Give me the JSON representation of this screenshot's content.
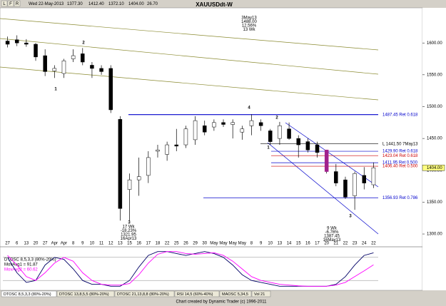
{
  "chart_data": {
    "type": "candlestick",
    "title": "XAUUSDdt-W",
    "header": {
      "buttons": [
        "L",
        "F",
        "R"
      ],
      "date": "Wed 22-May-2013",
      "open": "1377.30",
      "high": "1412.40",
      "low": "1372.10",
      "close": "1404.00",
      "change": "26.70"
    },
    "categories": [
      "27",
      "6",
      "13",
      "20",
      "27",
      "Apr",
      "Apr",
      "8",
      "9",
      "10",
      "11",
      "12",
      "13",
      "15",
      "16",
      "17",
      "18",
      "22",
      "25",
      "26",
      "29",
      "30",
      "May",
      "May",
      "May",
      "May",
      "8",
      "9",
      "10",
      "13",
      "14",
      "15",
      "16",
      "17",
      "20",
      "21",
      "22",
      "23",
      "24",
      "22"
    ],
    "open": [
      1603,
      1605,
      1600,
      1598,
      1580,
      1556,
      1552,
      1575,
      1583,
      1565,
      1560,
      1560,
      1480,
      1370,
      1385,
      1392,
      1430,
      1425,
      1440,
      1440,
      1448,
      1470,
      1468,
      1475,
      1472,
      1460,
      1470,
      1475,
      1462,
      1450,
      1465,
      1450,
      1445,
      1440,
      1432,
      1398,
      1385,
      1360,
      1392,
      1377.3
    ],
    "high": [
      1610,
      1612,
      1606,
      1600,
      1590,
      1565,
      1575,
      1590,
      1592,
      1570,
      1565,
      1565,
      1485,
      1395,
      1420,
      1430,
      1440,
      1445,
      1465,
      1470,
      1485,
      1478,
      1480,
      1480,
      1480,
      1470,
      1488,
      1480,
      1465,
      1476,
      1475,
      1455,
      1450,
      1445,
      1432,
      1410,
      1390,
      1398,
      1405,
      1412.4
    ],
    "low": [
      1593,
      1595,
      1594,
      1572,
      1548,
      1545,
      1545,
      1570,
      1565,
      1545,
      1550,
      1490,
      1321,
      1321,
      1360,
      1380,
      1420,
      1415,
      1430,
      1435,
      1440,
      1455,
      1462,
      1468,
      1450,
      1448,
      1455,
      1462,
      1440,
      1440,
      1448,
      1420,
      1428,
      1420,
      1395,
      1375,
      1355,
      1338,
      1370,
      1372.1
    ],
    "close": [
      1598,
      1600,
      1598,
      1578,
      1555,
      1560,
      1572,
      1580,
      1570,
      1560,
      1555,
      1495,
      1340,
      1385,
      1390,
      1420,
      1432,
      1440,
      1438,
      1465,
      1478,
      1460,
      1475,
      1472,
      1475,
      1465,
      1478,
      1470,
      1445,
      1470,
      1450,
      1440,
      1432,
      1428,
      1398,
      1380,
      1358,
      1395,
      1380,
      1404
    ],
    "highlight_index": 34,
    "up_color": "#ffffff",
    "down_color": "#000000",
    "highlight_color": "#a0208c",
    "ylim": [
      1281,
      1654
    ],
    "yticks": [
      {
        "value": 1300,
        "label": "1300.00"
      },
      {
        "value": 1350,
        "label": "1350.00"
      },
      {
        "value": 1400,
        "label": "1400.00"
      },
      {
        "value": 1450,
        "label": "1450.00"
      },
      {
        "value": 1500,
        "label": "1500.00"
      },
      {
        "value": 1550,
        "label": "1550.00"
      },
      {
        "value": 1600,
        "label": "1600.00"
      }
    ],
    "last_price": {
      "value": 1404,
      "label": "1404.00"
    },
    "levels": [
      {
        "value": 1487.45,
        "label": "1487.45 Ret 0.618",
        "color": "#0000cc"
      },
      {
        "value": 1441.5,
        "label": "L 1441.50 7May13",
        "color": "#000000"
      },
      {
        "value": 1429.9,
        "label": "1429.90 Ret 0.618",
        "color": "#0000cc"
      },
      {
        "value": 1423.04,
        "label": "1423.04 Ret 0.618",
        "color": "#cc0000"
      },
      {
        "value": 1411.95,
        "label": "1411.95 Ret 0.500",
        "color": "#0000cc"
      },
      {
        "value": 1406.4,
        "label": "1406.40 Ret 0.500",
        "color": "#cc0000"
      },
      {
        "value": 1356.93,
        "label": "1356.93 Ret 0.786",
        "color": "#0000cc"
      }
    ],
    "annotations": [
      [
        "3May13",
        "1488.00",
        "12.56%",
        "13 Wk"
      ],
      [
        "17 Wk",
        "-18.23%",
        "1321.95",
        "16Apr13"
      ],
      [
        "9 Wk",
        "-6.76%",
        "1387.45",
        "16May13"
      ]
    ],
    "wave_labels": [
      "2",
      "1",
      "4",
      "2",
      "1",
      "3",
      "3"
    ],
    "oscillator": {
      "label": "DTOSC 8,5,3,3 (80%-20%)",
      "ylim": [
        0,
        100
      ],
      "levels": [
        80,
        20
      ],
      "series": [
        {
          "name": "MovAvg1 = 91.87",
          "color": "#000066",
          "values": [
            80,
            40,
            15,
            20,
            60,
            80,
            75,
            50,
            20,
            10,
            10,
            5,
            5,
            20,
            55,
            85,
            95,
            95,
            90,
            85,
            90,
            95,
            90,
            80,
            60,
            35,
            20,
            15,
            10,
            5,
            5,
            5,
            5,
            5,
            5,
            10,
            30,
            60,
            85,
            91.87
          ]
        },
        {
          "name": "MovAvg2 = 60.62",
          "color": "#ff00ff",
          "values": [
            85,
            60,
            30,
            20,
            40,
            65,
            80,
            70,
            40,
            20,
            10,
            8,
            8,
            12,
            35,
            65,
            88,
            95,
            95,
            90,
            88,
            90,
            92,
            85,
            70,
            50,
            30,
            20,
            15,
            10,
            8,
            6,
            5,
            5,
            5,
            8,
            15,
            30,
            45,
            60.62
          ]
        }
      ]
    },
    "tabs": [
      "DTOSC 8,5,3,3 (80%-20%)",
      "DTOSC 13,8,5,5 (80%-20%)",
      "DTOSC 21,13,8,8 (80%-20%)",
      "RSI 14,5 (60%-40%)",
      "MAOSC 5,34,5",
      "Vol 21"
    ],
    "footer": "Chart created by Dynamic Trader  (c) 1996-2011"
  }
}
